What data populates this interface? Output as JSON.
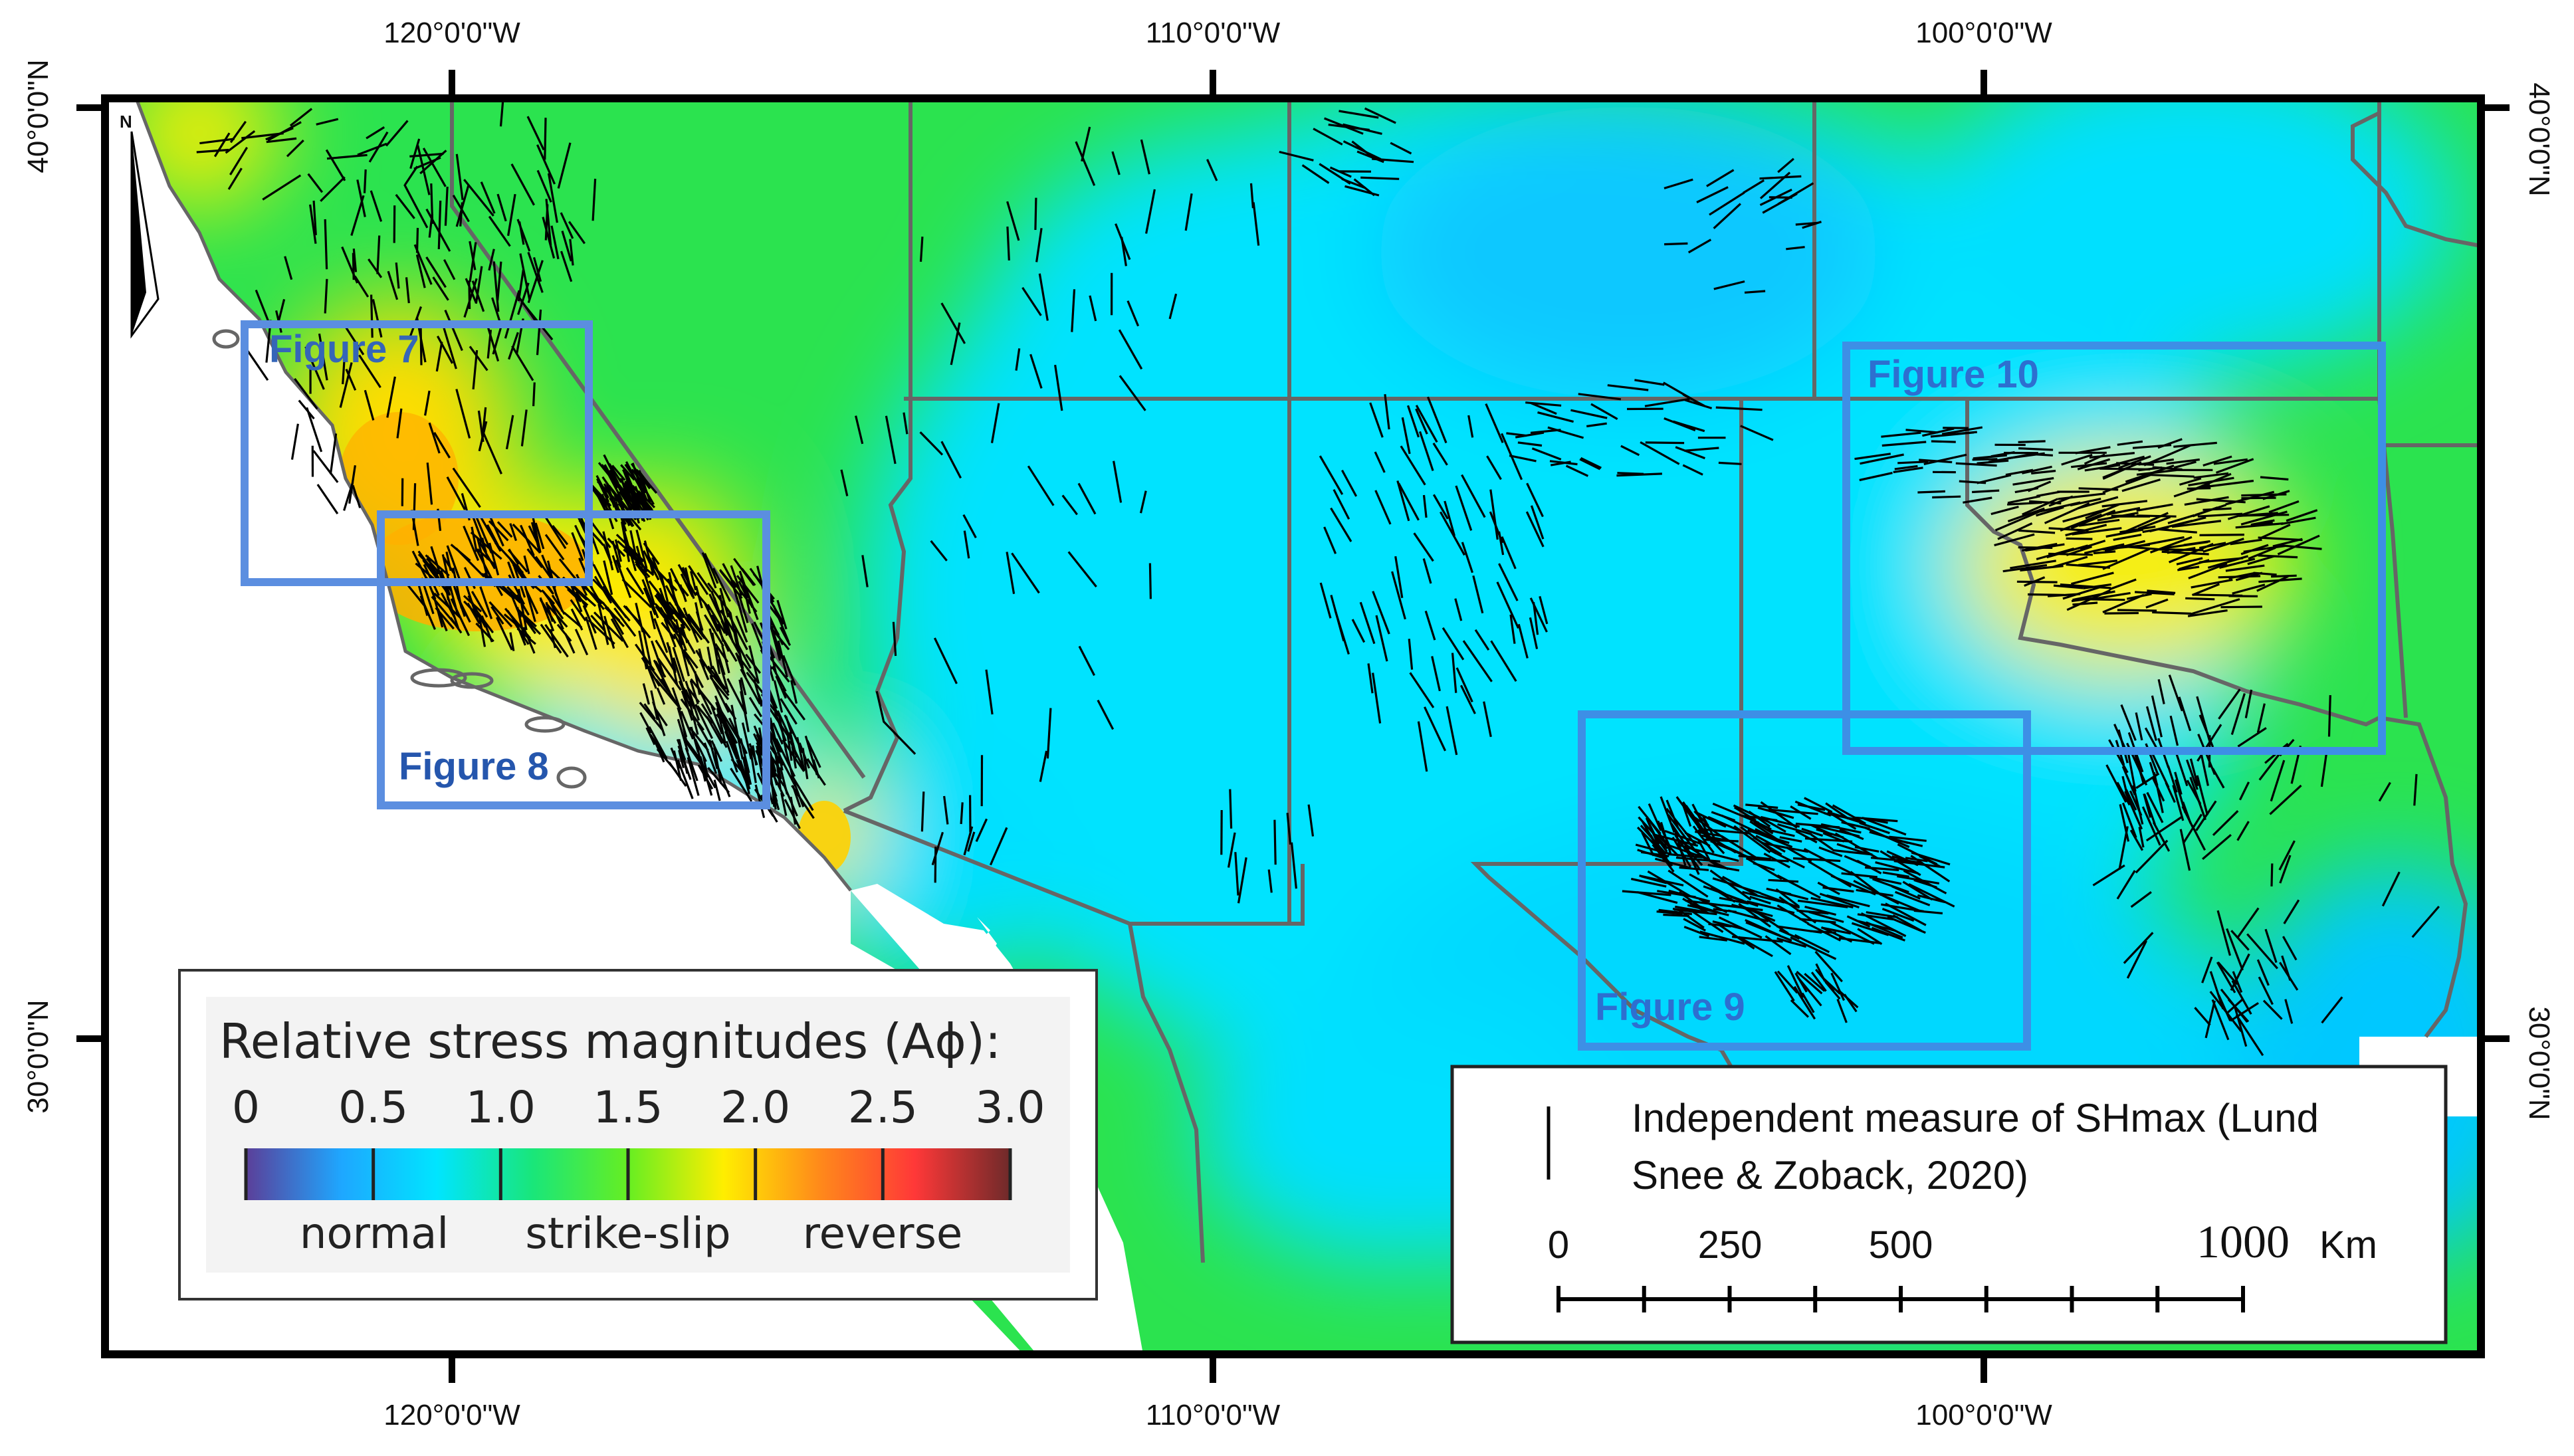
{
  "map": {
    "longitude_labels": [
      "120°0'0\"W",
      "110°0'0\"W",
      "100°0'0\"W"
    ],
    "latitude_labels": [
      "40°0'0\"N",
      "30°0'0\"N"
    ],
    "north_arrow_letter": "N",
    "study_area_figures": [
      {
        "label": "Figure 7",
        "color": "#5b8ee0"
      },
      {
        "label": "Figure 8",
        "color": "#5b8ee0"
      },
      {
        "label": "Figure 9",
        "color": "#3d8fe6"
      },
      {
        "label": "Figure 10",
        "color": "#3d8fe6"
      }
    ],
    "colors": {
      "normal": "#00e6ff",
      "strike_slip": "#22ee22",
      "transition": "#ffee00",
      "reverse": "#ff3030",
      "state_border": "#666666",
      "shmax_lines": "#000000"
    }
  },
  "stress_legend": {
    "title": "Relative stress magnitudes (Aϕ):",
    "tick_labels": [
      "0",
      "0.5",
      "1.0",
      "1.5",
      "2.0",
      "2.5",
      "3.0"
    ],
    "range": [
      0,
      3.0
    ],
    "class_labels": [
      "normal",
      "strike-slip",
      "reverse"
    ],
    "gradient_colors": [
      "#5b3f99",
      "#1ea7ff",
      "#00e5ff",
      "#19e67a",
      "#66ee22",
      "#ffee00",
      "#ff8a1a",
      "#ff3838",
      "#6e2a2a"
    ]
  },
  "shmax_legend": {
    "line1": "Independent measure of SHmax (Lund",
    "line2": "Snee & Zoback, 2020)",
    "scale_labels": [
      "0",
      "250",
      "500",
      "1000"
    ],
    "scale_unit": "Km"
  }
}
